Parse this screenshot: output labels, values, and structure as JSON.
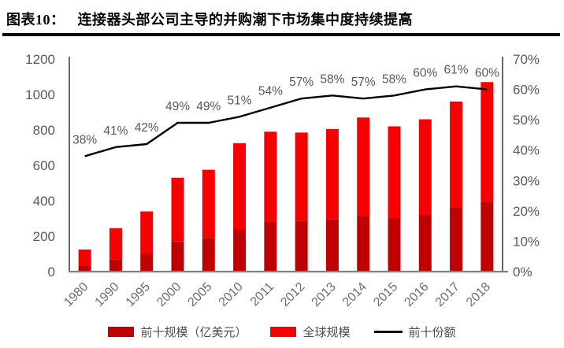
{
  "figure": {
    "label": "图表10：",
    "title": "连接器头部公司主导的并购潮下市场集中度持续提高"
  },
  "chart_data": {
    "type": "bar",
    "subtype": "stacked-bars-with-line",
    "title": "连接器头部公司主导的并购潮下市场集中度持续提高",
    "categories": [
      "1980",
      "1990",
      "1995",
      "2000",
      "2005",
      "2010",
      "2011",
      "2012",
      "2013",
      "2014",
      "2015",
      "2016",
      "2017",
      "2018"
    ],
    "series": [
      {
        "name": "前十规模（亿美元）",
        "chart": "bar",
        "stack_order": 0,
        "axis": "left",
        "color": "#c00000",
        "values": [
          35,
          70,
          100,
          170,
          190,
          240,
          280,
          285,
          295,
          315,
          300,
          320,
          360,
          395
        ]
      },
      {
        "name": "全球规模",
        "chart": "bar",
        "stack_order": 1,
        "axis": "left",
        "color": "#f80000",
        "values": [
          90,
          175,
          240,
          360,
          385,
          485,
          510,
          500,
          510,
          555,
          520,
          540,
          600,
          675
        ]
      },
      {
        "name": "前十份额",
        "chart": "line",
        "axis": "right",
        "unit": "%",
        "color": "#000000",
        "values": [
          38,
          41,
          42,
          49,
          49,
          51,
          54,
          57,
          58,
          57,
          58,
          60,
          61,
          60
        ]
      }
    ],
    "left_axis": {
      "min": 0,
      "max": 1200,
      "step": 200,
      "unit": ""
    },
    "right_axis": {
      "min": 0,
      "max": 70,
      "step": 10,
      "unit": "%"
    },
    "grid": false,
    "legend_position": "bottom",
    "point_label_color": "#595959",
    "axis_text_color": "#595959",
    "xlabel_color": "#6e6e6e"
  }
}
